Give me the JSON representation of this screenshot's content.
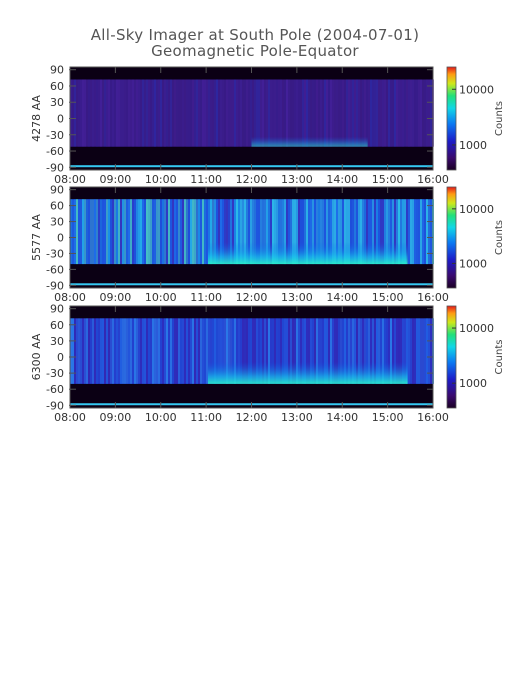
{
  "figure": {
    "title": "All-Sky Imager at South Pole (2004-07-01)",
    "subtitle": "Geomagnetic Pole-Equator"
  },
  "chart_data": [
    {
      "type": "heatmap",
      "ylabel": "4278 AA",
      "y_ticks": [
        "90",
        "60",
        "30",
        "0",
        "-30",
        "-60",
        "-90"
      ],
      "y_tick_values": [
        90,
        60,
        30,
        0,
        -30,
        -60,
        -90
      ],
      "ylim": [
        -95,
        95
      ],
      "x_ticks": [
        "08:00",
        "09:00",
        "10:00",
        "11:00",
        "12:00",
        "13:00",
        "14:00",
        "15:00",
        "16:00"
      ],
      "xlim": [
        "08:00",
        "16:00"
      ],
      "colorbar": {
        "label": "Counts",
        "ticks": [
          "10000",
          "1000"
        ],
        "tick_values": [
          10000,
          1000
        ],
        "scale": "log"
      },
      "intensity": "low",
      "image_rows_deg": [
        -52,
        72
      ]
    },
    {
      "type": "heatmap",
      "ylabel": "5577 AA",
      "y_ticks": [
        "90",
        "60",
        "30",
        "0",
        "-30",
        "-60",
        "-90"
      ],
      "y_tick_values": [
        90,
        60,
        30,
        0,
        -30,
        -60,
        -90
      ],
      "ylim": [
        -95,
        95
      ],
      "x_ticks": [
        "08:00",
        "09:00",
        "10:00",
        "11:00",
        "12:00",
        "13:00",
        "14:00",
        "15:00",
        "16:00"
      ],
      "xlim": [
        "08:00",
        "16:00"
      ],
      "colorbar": {
        "label": "Counts",
        "ticks": [
          "10000",
          "1000"
        ],
        "tick_values": [
          10000,
          1000
        ],
        "scale": "log"
      },
      "intensity": "high",
      "image_rows_deg": [
        -50,
        72
      ]
    },
    {
      "type": "heatmap",
      "ylabel": "6300 AA",
      "y_ticks": [
        "90",
        "60",
        "30",
        "0",
        "-30",
        "-60",
        "-90"
      ],
      "y_tick_values": [
        90,
        60,
        30,
        0,
        -30,
        -60,
        -90
      ],
      "ylim": [
        -95,
        95
      ],
      "x_ticks": [
        "08:00",
        "09:00",
        "10:00",
        "11:00",
        "12:00",
        "13:00",
        "14:00",
        "15:00",
        "16:00"
      ],
      "xlim": [
        "08:00",
        "16:00"
      ],
      "colorbar": {
        "label": "Counts",
        "ticks": [
          "10000",
          "1000"
        ],
        "tick_values": [
          10000,
          1000
        ],
        "scale": "log"
      },
      "intensity": "medium",
      "image_rows_deg": [
        -50,
        72
      ]
    }
  ]
}
